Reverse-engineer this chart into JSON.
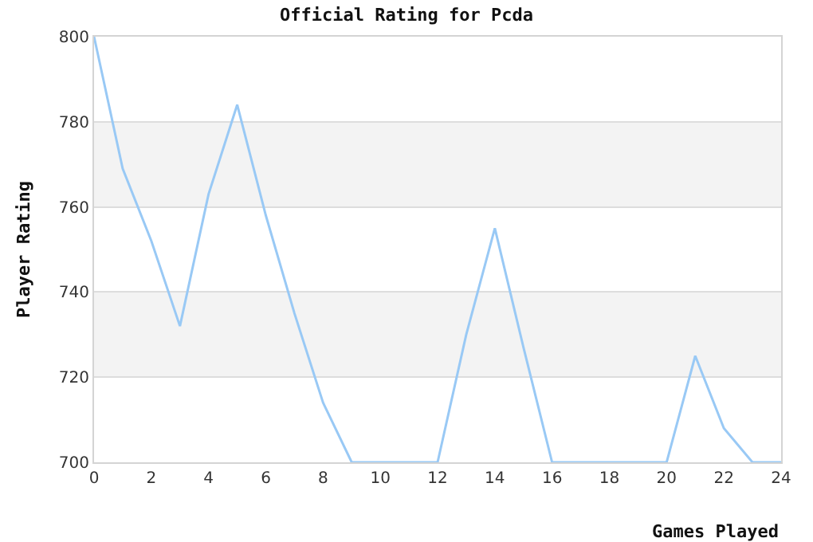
{
  "chart_data": {
    "type": "line",
    "title": "Official Rating for Pcda",
    "xlabel": "Games Played",
    "ylabel": "Player Rating",
    "x": [
      0,
      1,
      2,
      3,
      4,
      5,
      6,
      7,
      8,
      9,
      10,
      11,
      12,
      13,
      14,
      15,
      16,
      17,
      18,
      19,
      20,
      21,
      22,
      23,
      24
    ],
    "series": [
      {
        "color": "#99c9f5",
        "values": [
          800,
          769,
          752,
          732,
          763,
          784,
          758,
          735,
          714,
          700,
          700,
          700,
          700,
          730,
          755,
          727,
          700,
          700,
          700,
          700,
          700,
          725,
          708,
          700,
          700
        ]
      }
    ],
    "xlim": [
      0,
      24
    ],
    "xticks": [
      0,
      2,
      4,
      6,
      8,
      10,
      12,
      14,
      16,
      18,
      20,
      22,
      24
    ],
    "ylim": [
      700,
      800
    ],
    "yticks": [
      700,
      720,
      740,
      760,
      780,
      800
    ],
    "grid": "y",
    "marker": "none",
    "line_style": "solid",
    "bands": [
      {
        "axis": "y",
        "from": 720,
        "to": 740,
        "color": "#f3f3f3"
      },
      {
        "axis": "y",
        "from": 760,
        "to": 780,
        "color": "#f3f3f3"
      }
    ]
  }
}
